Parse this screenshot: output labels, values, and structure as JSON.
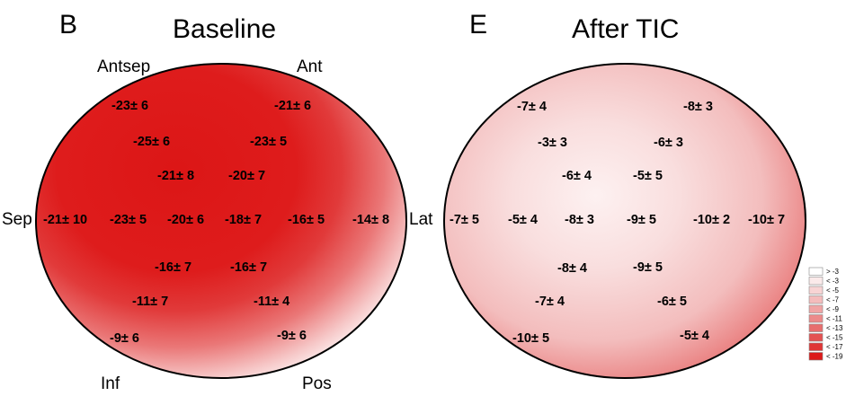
{
  "panels": [
    {
      "letter": "B",
      "title": "Baseline",
      "labels": {
        "antsep": "Antsep",
        "ant": "Ant",
        "sep": "Sep",
        "inf": "Inf",
        "pos": "Pos"
      },
      "segments": [
        "-23± 6",
        "-21± 6",
        "-25± 6",
        "-23± 5",
        "-21± 8",
        "-20± 7",
        "-21± 10",
        "-23± 5",
        "-20± 6",
        "-18± 7",
        "-16± 5",
        "-14± 8",
        "-16± 7",
        "-16± 7",
        "-11± 7",
        "-11± 4",
        "-9± 6",
        "-9± 6"
      ]
    },
    {
      "letter": "E",
      "title": "After TIC",
      "labels": {
        "lat": "Lat"
      },
      "segments": [
        "-7± 4",
        "-8± 3",
        "-3± 3",
        "-6± 3",
        "-6± 4",
        "-5± 5",
        "-7± 5",
        "-5± 4",
        "-8± 3",
        "-9± 5",
        "-10± 2",
        "-10± 7",
        "-8± 4",
        "-9± 5",
        "-7± 4",
        "-6± 5",
        "-10± 5",
        "-5± 4"
      ]
    }
  ],
  "legend": {
    "items": [
      {
        "label": "> -3",
        "color": "#ffffff"
      },
      {
        "label": "< -3",
        "color": "#fbeaea"
      },
      {
        "label": "< -5",
        "color": "#f8d4d4"
      },
      {
        "label": "< -7",
        "color": "#f4bcbc"
      },
      {
        "label": "< -9",
        "color": "#f0a4a4"
      },
      {
        "label": "< -11",
        "color": "#ec8a8a"
      },
      {
        "label": "< -13",
        "color": "#e86e6e"
      },
      {
        "label": "< -15",
        "color": "#e45252"
      },
      {
        "label": "< -17",
        "color": "#e03636"
      },
      {
        "label": "< -19",
        "color": "#dc1a1a"
      }
    ]
  }
}
